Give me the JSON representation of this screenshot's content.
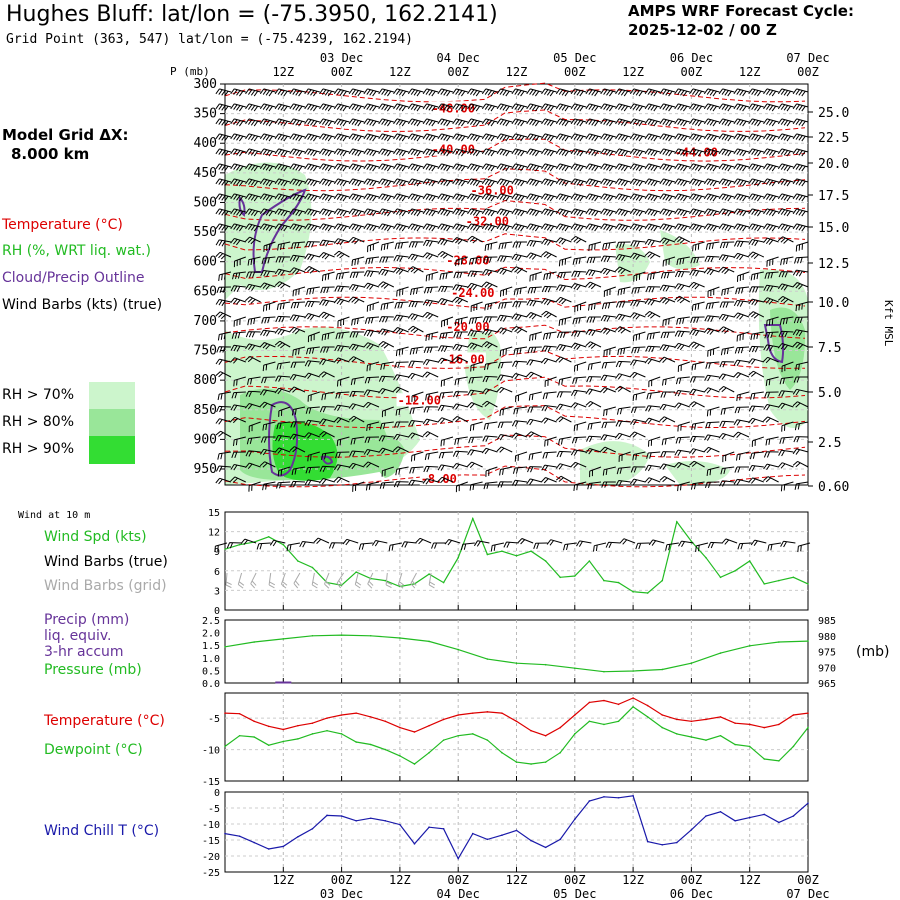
{
  "header": {
    "title": "Hughes Bluff:  lat/lon = (-75.3950, 162.2141)",
    "subtitle": "Grid Point (363, 547) lat/lon = (-75.4239, 162.2194)",
    "cycle_line1": "AMPS WRF Forecast Cycle:",
    "cycle_line2": "2025-12-02 / 00  Z"
  },
  "grid_dx": {
    "line1": "Model Grid ΔX:",
    "line2": "8.000 km"
  },
  "colors": {
    "temperature": "#dd0000",
    "rh": "#22bb22",
    "cloud": "#663399",
    "windchill": "#1a1aaa",
    "rh70": "#ccf5cc",
    "rh80": "#99e699",
    "rh90": "#33dd33"
  },
  "time_axis": {
    "labels": [
      "12Z",
      "00Z",
      "12Z",
      "00Z",
      "12Z",
      "00Z",
      "12Z",
      "00Z",
      "12Z",
      "00Z"
    ],
    "dates": [
      "03 Dec",
      "04 Dec",
      "05 Dec",
      "06 Dec",
      "07 Dec"
    ]
  },
  "chart_data": [
    {
      "type": "heatmap",
      "xlabel": "",
      "ylabel": "P (mb)",
      "y2label": "Kft MSL",
      "x_range_hours": [
        0,
        120
      ],
      "pressure_levels": [
        300,
        350,
        400,
        450,
        500,
        550,
        600,
        650,
        700,
        750,
        800,
        850,
        900,
        950
      ],
      "kft_labels": [
        "25.0",
        "22.5",
        "20.0",
        "17.5",
        "15.0",
        "12.5",
        "10.0",
        "7.5",
        "5.0",
        "2.5",
        "0.60"
      ],
      "legend": [
        "Temperature (°C)",
        "RH (%, WRT liq. wat.)",
        "Cloud/Precip Outline",
        "Wind Barbs (kts) (true)"
      ],
      "rh_legend": [
        "RH > 70%",
        "RH > 80%",
        "RH > 90%"
      ],
      "temperature_labels": [
        {
          "text": "-48.00",
          "hour": 47,
          "p": 341
        },
        {
          "text": "-40.00",
          "hour": 47,
          "p": 411
        },
        {
          "text": "-44.00",
          "hour": 97,
          "p": 416
        },
        {
          "text": "-36.00",
          "hour": 55,
          "p": 480
        },
        {
          "text": "-32.00",
          "hour": 54,
          "p": 532
        },
        {
          "text": "-28.00",
          "hour": 50,
          "p": 598
        },
        {
          "text": "-24.00",
          "hour": 51,
          "p": 653
        },
        {
          "text": "-20.00",
          "hour": 50,
          "p": 710
        },
        {
          "text": "-16.00",
          "hour": 49,
          "p": 765
        },
        {
          "text": "-12.00",
          "hour": 40,
          "p": 834
        },
        {
          "text": "-8.00",
          "hour": 44,
          "p": 967
        }
      ]
    },
    {
      "type": "line",
      "legend_title": "Wind at 10 m",
      "legend": [
        "Wind Spd (kts)",
        "Wind Barbs (true)",
        "Wind Barbs (grid)"
      ],
      "yticks": [
        "15",
        "12",
        "9",
        "6",
        "3",
        "0"
      ],
      "ylim": [
        0,
        15
      ],
      "x_hours": [
        0,
        3,
        6,
        9,
        12,
        15,
        18,
        21,
        24,
        27,
        30,
        33,
        36,
        39,
        42,
        45,
        48,
        51,
        54,
        57,
        60,
        63,
        66,
        69,
        72,
        75,
        78,
        81,
        84,
        87,
        90,
        93,
        96,
        99,
        102,
        105,
        108,
        111,
        114,
        117,
        120
      ],
      "series": [
        {
          "name": "Wind Spd (kts)",
          "values": [
            9.3,
            10.0,
            10.4,
            11.2,
            10.0,
            7.5,
            6.5,
            4.2,
            3.8,
            5.8,
            4.8,
            4.5,
            3.6,
            4.0,
            5.5,
            4.2,
            8.0,
            14.0,
            8.5,
            9.0,
            8.3,
            9.0,
            7.5,
            5.0,
            5.2,
            7.5,
            4.5,
            4.2,
            2.8,
            2.6,
            4.5,
            13.5,
            10.5,
            8.0,
            5.0,
            6.0,
            7.5,
            4.0,
            4.5,
            5.0,
            4.0
          ]
        }
      ]
    },
    {
      "type": "line",
      "legend": [
        "Precip (mm)",
        "liq. equiv.",
        "3-hr accum",
        "Pressure (mb)"
      ],
      "yticks_left": [
        "2.5",
        "2.0",
        "1.5",
        "1.0",
        "0.5",
        "0.0"
      ],
      "yticks_right": [
        "985",
        "980",
        "975",
        "970",
        "965"
      ],
      "y2label": "(mb)",
      "ylim": [
        0,
        2.5
      ],
      "y2lim": [
        965,
        985
      ],
      "x_hours": [
        0,
        6,
        12,
        18,
        24,
        30,
        36,
        42,
        48,
        54,
        60,
        66,
        72,
        78,
        84,
        90,
        96,
        102,
        108,
        114,
        120
      ],
      "series": [
        {
          "name": "Pressure (mb)",
          "values": [
            976.5,
            978.0,
            979.0,
            980.0,
            980.2,
            980.0,
            979.3,
            978.2,
            975.6,
            972.6,
            971.3,
            970.8,
            969.7,
            968.6,
            968.8,
            969.3,
            971.3,
            974.5,
            976.8,
            978.0,
            978.3
          ]
        },
        {
          "name": "Precip (mm)",
          "values": [
            0,
            0,
            0.02,
            0,
            0,
            0,
            0,
            0,
            0,
            0,
            0,
            0,
            0,
            0,
            0,
            0,
            0,
            0,
            0,
            0,
            0
          ]
        }
      ]
    },
    {
      "type": "line",
      "legend": [
        "Temperature (°C)",
        "Dewpoint (°C)"
      ],
      "yticks": [
        "-5",
        "-10",
        "-15"
      ],
      "ylim": [
        -15,
        -1
      ],
      "x_hours": [
        0,
        3,
        6,
        9,
        12,
        15,
        18,
        21,
        24,
        27,
        30,
        33,
        36,
        39,
        42,
        45,
        48,
        51,
        54,
        57,
        60,
        63,
        66,
        69,
        72,
        75,
        78,
        81,
        84,
        87,
        90,
        93,
        96,
        99,
        102,
        105,
        108,
        111,
        114,
        117,
        120
      ],
      "series": [
        {
          "name": "Temperature (°C)",
          "values": [
            -4.2,
            -4.3,
            -5.5,
            -6.3,
            -6.8,
            -6.2,
            -5.8,
            -5.0,
            -4.5,
            -4.2,
            -4.8,
            -5.5,
            -6.5,
            -7.2,
            -6.2,
            -5.2,
            -4.5,
            -4.2,
            -4.0,
            -4.2,
            -5.5,
            -7.0,
            -7.8,
            -6.5,
            -4.5,
            -2.5,
            -2.2,
            -2.8,
            -1.8,
            -3.0,
            -4.5,
            -5.2,
            -5.5,
            -5.2,
            -4.8,
            -5.8,
            -6.0,
            -6.5,
            -6.0,
            -4.5,
            -4.2
          ]
        },
        {
          "name": "Dewpoint (°C)",
          "values": [
            -9.5,
            -7.8,
            -8.0,
            -9.3,
            -8.7,
            -8.3,
            -7.5,
            -7.0,
            -7.5,
            -8.8,
            -9.2,
            -10.0,
            -11.0,
            -12.3,
            -10.5,
            -8.5,
            -7.8,
            -7.5,
            -8.5,
            -10.5,
            -12.0,
            -12.3,
            -12.0,
            -10.5,
            -7.5,
            -5.5,
            -6.0,
            -5.5,
            -3.2,
            -4.8,
            -6.5,
            -7.5,
            -8.0,
            -8.5,
            -7.8,
            -9.2,
            -9.5,
            -11.5,
            -11.8,
            -9.5,
            -6.5
          ]
        }
      ]
    },
    {
      "type": "line",
      "legend": [
        "Wind Chill T (°C)"
      ],
      "yticks": [
        "-5",
        "-10",
        "-15",
        "-20",
        "-25"
      ],
      "ylim": [
        -25,
        0
      ],
      "x_hours": [
        0,
        3,
        6,
        9,
        12,
        15,
        18,
        21,
        24,
        27,
        30,
        33,
        36,
        39,
        42,
        45,
        48,
        51,
        54,
        57,
        60,
        63,
        66,
        69,
        72,
        75,
        78,
        81,
        84,
        87,
        90,
        93,
        96,
        99,
        102,
        105,
        108,
        111,
        114,
        117,
        120
      ],
      "series": [
        {
          "name": "Wind Chill T (°C)",
          "values": [
            -13.0,
            -13.8,
            -15.8,
            -17.8,
            -17.0,
            -14.0,
            -11.5,
            -7.3,
            -7.5,
            -9.0,
            -8.2,
            -9.0,
            -10.2,
            -16.2,
            -11.0,
            -11.5,
            -20.8,
            -13.0,
            -14.8,
            -13.5,
            -12.0,
            -15.2,
            -17.3,
            -14.8,
            -8.5,
            -2.8,
            -1.5,
            -1.8,
            -1.2,
            -15.5,
            -16.5,
            -15.8,
            -11.8,
            -7.5,
            -6.2,
            -9.0,
            -8.0,
            -7.0,
            -9.5,
            -7.5,
            -3.5
          ]
        }
      ]
    }
  ]
}
